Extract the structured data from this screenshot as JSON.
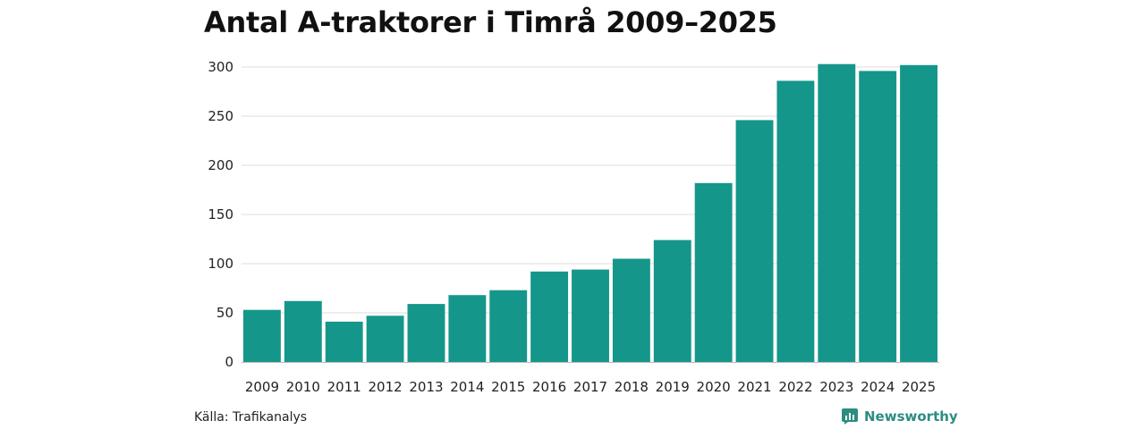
{
  "chart_data": {
    "type": "bar",
    "title": "Antal A-traktorer i Timrå 2009–2025",
    "xlabel": "",
    "ylabel": "",
    "ylim": [
      0,
      300
    ],
    "yticks": [
      0,
      50,
      100,
      150,
      200,
      250,
      300
    ],
    "grid": true,
    "categories": [
      "2009",
      "2010",
      "2011",
      "2012",
      "2013",
      "2014",
      "2015",
      "2016",
      "2017",
      "2018",
      "2019",
      "2020",
      "2021",
      "2022",
      "2023",
      "2024",
      "2025"
    ],
    "values": [
      53,
      62,
      41,
      47,
      59,
      68,
      73,
      92,
      94,
      105,
      124,
      182,
      246,
      286,
      303,
      296,
      302
    ],
    "bar_color": "#15968a",
    "grid_color": "#dddddd",
    "axis_color": "#bbbbbb"
  },
  "footer": {
    "source": "Källa: Trafikanalys",
    "brand": "Newsworthy",
    "brand_color": "#2c8c80"
  }
}
